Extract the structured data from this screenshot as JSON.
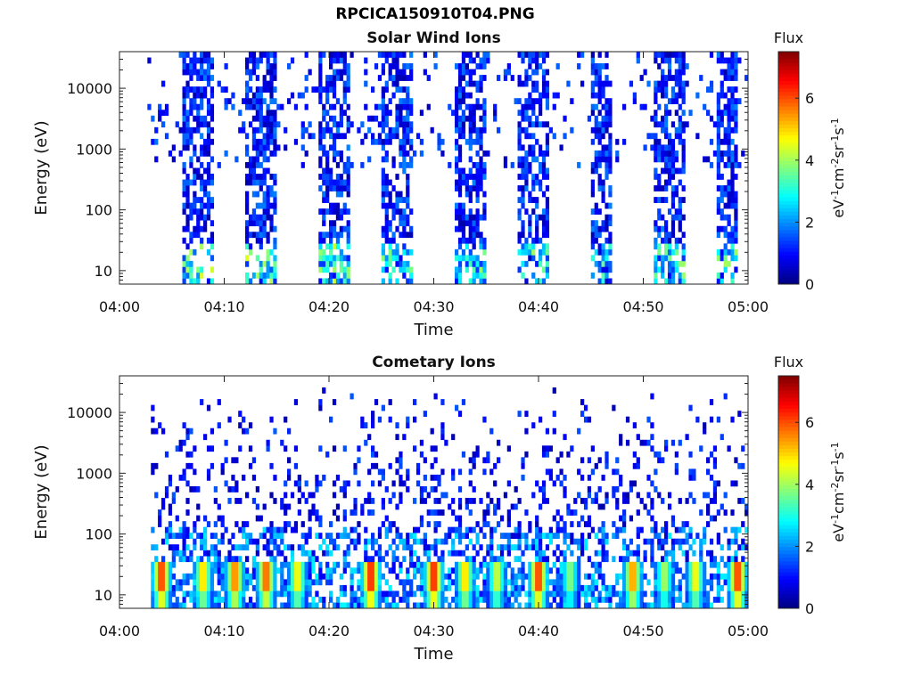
{
  "figure": {
    "title": "RPCICA150910T04.PNG"
  },
  "chart_data": [
    {
      "type": "heatmap",
      "title": "Solar Wind Ions",
      "xlabel": "Time",
      "ylabel": "Energy (eV)",
      "x_ticks": [
        "04:00",
        "04:10",
        "04:20",
        "04:30",
        "04:40",
        "04:50",
        "05:00"
      ],
      "xlim": [
        "04:00",
        "05:00"
      ],
      "y_ticks": [
        "10",
        "100",
        "1000",
        "10000"
      ],
      "y_scale": "log",
      "ylim": [
        6,
        40000
      ],
      "colorbar": {
        "title": "Flux",
        "label": "eV-1cm-2sr-1s-1",
        "range": [
          0,
          7.5
        ],
        "ticks": [
          "0",
          "2",
          "4",
          "6"
        ]
      },
      "active_intervals": [
        {
          "start": "04:06",
          "end": "04:09",
          "peak_flux": 4.5
        },
        {
          "start": "04:12",
          "end": "04:15",
          "peak_flux": 4.2
        },
        {
          "start": "04:19",
          "end": "04:22",
          "peak_flux": 4.0
        },
        {
          "start": "04:25",
          "end": "04:28",
          "peak_flux": 3.5
        },
        {
          "start": "04:32",
          "end": "04:35",
          "peak_flux": 3.5
        },
        {
          "start": "04:38",
          "end": "04:41",
          "peak_flux": 4.2
        },
        {
          "start": "04:45",
          "end": "04:47",
          "peak_flux": 3.2
        },
        {
          "start": "04:51",
          "end": "04:54",
          "peak_flux": 3.8
        },
        {
          "start": "04:57",
          "end": "04:59",
          "peak_flux": 4.5
        }
      ]
    },
    {
      "type": "heatmap",
      "title": "Cometary Ions",
      "xlabel": "Time",
      "ylabel": "Energy (eV)",
      "x_ticks": [
        "04:00",
        "04:10",
        "04:20",
        "04:30",
        "04:40",
        "04:50",
        "05:00"
      ],
      "xlim": [
        "04:00",
        "05:00"
      ],
      "y_ticks": [
        "10",
        "100",
        "1000",
        "10000"
      ],
      "y_scale": "log",
      "ylim": [
        6,
        40000
      ],
      "colorbar": {
        "title": "Flux",
        "label": "eV-1cm-2sr-1s-1",
        "range": [
          0,
          7.5
        ],
        "ticks": [
          "0",
          "2",
          "4",
          "6"
        ]
      },
      "low_energy_peaks": [
        {
          "time": "04:04",
          "flux": 6.8
        },
        {
          "time": "04:08",
          "flux": 5.5
        },
        {
          "time": "04:11",
          "flux": 6.2
        },
        {
          "time": "04:14",
          "flux": 6.5
        },
        {
          "time": "04:17",
          "flux": 5.2
        },
        {
          "time": "04:24",
          "flux": 7.0
        },
        {
          "time": "04:30",
          "flux": 7.0
        },
        {
          "time": "04:33",
          "flux": 5.5
        },
        {
          "time": "04:36",
          "flux": 4.8
        },
        {
          "time": "04:40",
          "flux": 6.8
        },
        {
          "time": "04:43",
          "flux": 4.2
        },
        {
          "time": "04:49",
          "flux": 6.0
        },
        {
          "time": "04:52",
          "flux": 4.5
        },
        {
          "time": "04:55",
          "flux": 5.2
        },
        {
          "time": "04:59",
          "flux": 6.8
        }
      ]
    }
  ]
}
